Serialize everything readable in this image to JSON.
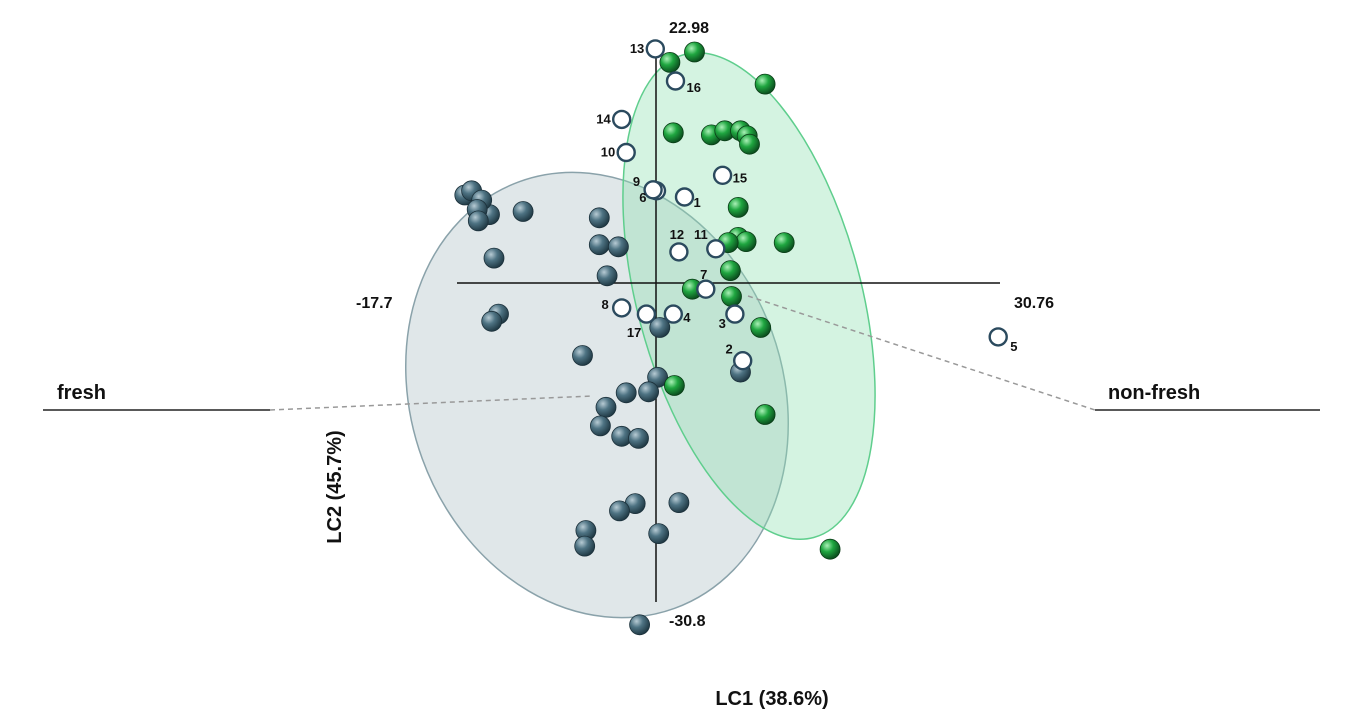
{
  "chart_data": {
    "type": "scatter",
    "xlabel": "LC1 (38.6%)",
    "ylabel": "LC2 (45.7%)",
    "xlim": [
      -17.7,
      30.76
    ],
    "ylim": [
      -30.8,
      22.98
    ],
    "tick_labels": {
      "xmin": "-17.7",
      "xmax": "30.76",
      "ymax": "22.98",
      "ymin": "-30.8"
    },
    "group_labels": {
      "left": "fresh",
      "right": "non-fresh"
    },
    "colors": {
      "fresh": "#3f6475",
      "non_fresh": "#1aa03a",
      "test": "#ffffff",
      "fresh_ellipse": "#aebfc5",
      "non_fresh_ellipse": "#8fe0b0"
    },
    "series": [
      {
        "key": "fresh",
        "points": [
          [
            -17.0,
            8.5
          ],
          [
            -16.4,
            8.9
          ],
          [
            -14.8,
            6.6
          ],
          [
            -15.5,
            8.0
          ],
          [
            -15.9,
            7.1
          ],
          [
            -15.8,
            6.0
          ],
          [
            -14.4,
            2.4
          ],
          [
            -11.8,
            6.9
          ],
          [
            -14.0,
            -3.0
          ],
          [
            -14.6,
            -3.7
          ],
          [
            -5.0,
            6.3
          ],
          [
            -5.0,
            3.7
          ],
          [
            -3.3,
            3.5
          ],
          [
            -4.3,
            0.7
          ],
          [
            -6.5,
            -7.0
          ],
          [
            0.4,
            -4.3
          ],
          [
            0.2,
            -9.1
          ],
          [
            -0.6,
            -10.5
          ],
          [
            -2.6,
            -10.6
          ],
          [
            -4.4,
            -12.0
          ],
          [
            -4.9,
            -13.8
          ],
          [
            -3.0,
            -14.8
          ],
          [
            -1.5,
            -15.0
          ],
          [
            2.1,
            -21.2
          ],
          [
            -1.8,
            -21.3
          ],
          [
            -3.2,
            -22.0
          ],
          [
            0.3,
            -24.2
          ],
          [
            -6.2,
            -23.9
          ],
          [
            -6.3,
            -25.4
          ],
          [
            -1.4,
            -33.0
          ],
          [
            7.6,
            -8.6
          ]
        ]
      },
      {
        "key": "non-fresh",
        "points": [
          [
            3.5,
            22.3
          ],
          [
            1.3,
            21.3
          ],
          [
            9.8,
            19.2
          ],
          [
            1.6,
            14.5
          ],
          [
            5.0,
            14.3
          ],
          [
            6.2,
            14.7
          ],
          [
            7.6,
            14.7
          ],
          [
            8.2,
            14.2
          ],
          [
            8.4,
            13.4
          ],
          [
            7.4,
            7.3
          ],
          [
            7.4,
            4.4
          ],
          [
            8.1,
            4.0
          ],
          [
            11.5,
            3.9
          ],
          [
            6.5,
            3.9
          ],
          [
            6.7,
            1.2
          ],
          [
            3.3,
            -0.6
          ],
          [
            6.8,
            -1.3
          ],
          [
            9.4,
            -4.3
          ],
          [
            1.7,
            -9.9
          ],
          [
            9.8,
            -12.7
          ],
          [
            15.6,
            -25.7
          ]
        ]
      },
      {
        "key": "test",
        "points": [
          [
            2.6,
            8.3,
            "1"
          ],
          [
            7.8,
            -7.5,
            "2"
          ],
          [
            7.1,
            -3.0,
            "3"
          ],
          [
            1.6,
            -3.0,
            "4"
          ],
          [
            30.6,
            -5.2,
            "5"
          ],
          [
            0.1,
            8.9,
            "6"
          ],
          [
            4.5,
            -0.6,
            "7"
          ],
          [
            -3.0,
            -2.4,
            "8"
          ],
          [
            -0.2,
            9.0,
            "9"
          ],
          [
            -2.6,
            12.6,
            "10"
          ],
          [
            5.4,
            3.3,
            "11"
          ],
          [
            2.1,
            3.0,
            "12"
          ],
          [
            0.0,
            22.6,
            "13"
          ],
          [
            -3.0,
            15.8,
            "14"
          ],
          [
            6.0,
            10.4,
            "15"
          ],
          [
            1.8,
            19.5,
            "16"
          ],
          [
            -0.8,
            -3.0,
            "17"
          ]
        ]
      }
    ]
  }
}
